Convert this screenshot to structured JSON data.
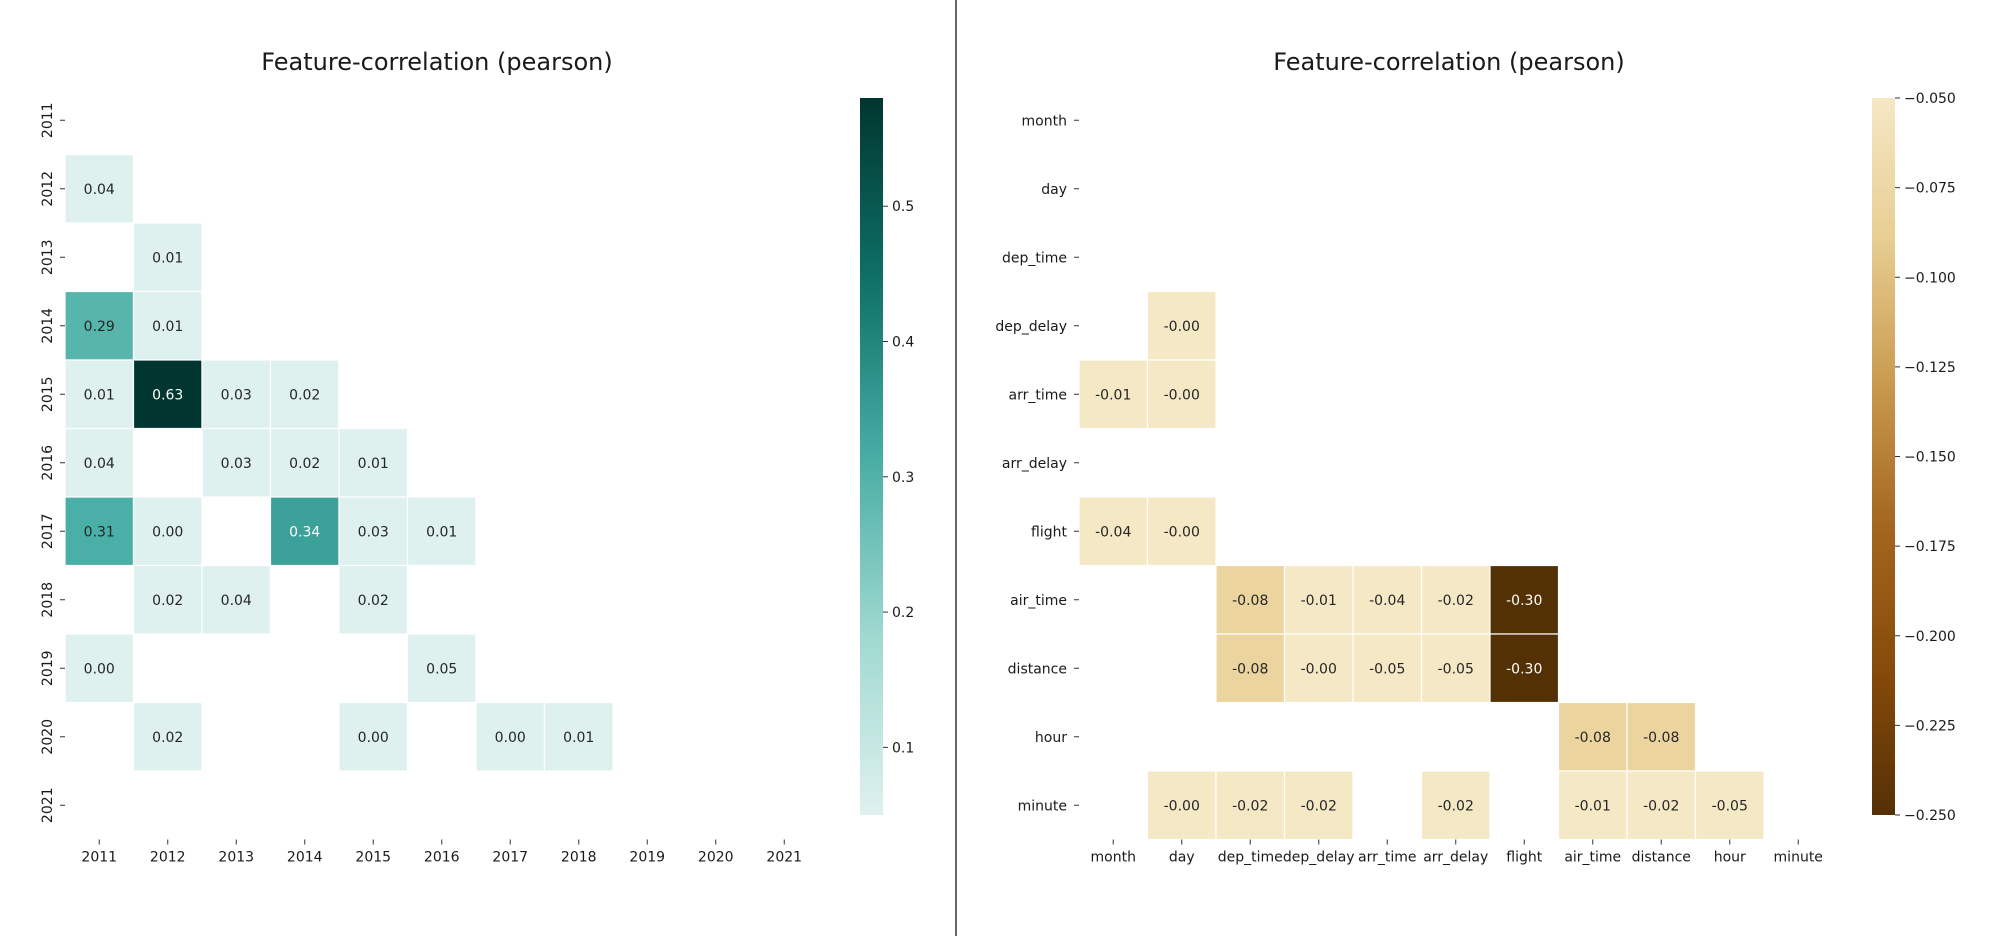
{
  "chart_data": [
    {
      "type": "heatmap",
      "title": "Feature-correlation (pearson)",
      "x_labels": [
        "2011",
        "2012",
        "2013",
        "2014",
        "2015",
        "2016",
        "2017",
        "2018",
        "2019",
        "2020",
        "2021"
      ],
      "y_labels": [
        "2011",
        "2012",
        "2013",
        "2014",
        "2015",
        "2016",
        "2017",
        "2018",
        "2019",
        "2020",
        "2021"
      ],
      "cells": [
        {
          "row": "2012",
          "col": "2011",
          "value": 0.04,
          "label": "0.04"
        },
        {
          "row": "2013",
          "col": "2012",
          "value": 0.01,
          "label": "0.01"
        },
        {
          "row": "2014",
          "col": "2011",
          "value": 0.29,
          "label": "0.29"
        },
        {
          "row": "2014",
          "col": "2012",
          "value": 0.01,
          "label": "0.01"
        },
        {
          "row": "2015",
          "col": "2011",
          "value": 0.01,
          "label": "0.01"
        },
        {
          "row": "2015",
          "col": "2012",
          "value": 0.63,
          "label": "0.63"
        },
        {
          "row": "2015",
          "col": "2013",
          "value": 0.03,
          "label": "0.03"
        },
        {
          "row": "2015",
          "col": "2014",
          "value": 0.02,
          "label": "0.02"
        },
        {
          "row": "2016",
          "col": "2011",
          "value": 0.04,
          "label": "0.04"
        },
        {
          "row": "2016",
          "col": "2013",
          "value": 0.03,
          "label": "0.03"
        },
        {
          "row": "2016",
          "col": "2014",
          "value": 0.02,
          "label": "0.02"
        },
        {
          "row": "2016",
          "col": "2015",
          "value": 0.01,
          "label": "0.01"
        },
        {
          "row": "2017",
          "col": "2011",
          "value": 0.31,
          "label": "0.31"
        },
        {
          "row": "2017",
          "col": "2012",
          "value": 0.0,
          "label": "0.00"
        },
        {
          "row": "2017",
          "col": "2014",
          "value": 0.34,
          "label": "0.34"
        },
        {
          "row": "2017",
          "col": "2015",
          "value": 0.03,
          "label": "0.03"
        },
        {
          "row": "2017",
          "col": "2016",
          "value": 0.01,
          "label": "0.01"
        },
        {
          "row": "2018",
          "col": "2012",
          "value": 0.02,
          "label": "0.02"
        },
        {
          "row": "2018",
          "col": "2013",
          "value": 0.04,
          "label": "0.04"
        },
        {
          "row": "2018",
          "col": "2015",
          "value": 0.02,
          "label": "0.02"
        },
        {
          "row": "2019",
          "col": "2011",
          "value": 0.0,
          "label": "0.00"
        },
        {
          "row": "2019",
          "col": "2016",
          "value": 0.05,
          "label": "0.05"
        },
        {
          "row": "2020",
          "col": "2012",
          "value": 0.02,
          "label": "0.02"
        },
        {
          "row": "2020",
          "col": "2015",
          "value": 0.0,
          "label": "0.00"
        },
        {
          "row": "2020",
          "col": "2017",
          "value": 0.0,
          "label": "0.00"
        },
        {
          "row": "2020",
          "col": "2018",
          "value": 0.01,
          "label": "0.01"
        }
      ],
      "colorbar": {
        "range": [
          0.05,
          0.58
        ],
        "ticks": [
          0.1,
          0.2,
          0.3,
          0.4,
          0.5
        ],
        "tick_labels": [
          "0.1",
          "0.2",
          "0.3",
          "0.4",
          "0.5"
        ],
        "colors": [
          "#dff1ef",
          "#9fd9d0",
          "#47ada4",
          "#0e7067",
          "#00362f"
        ]
      }
    },
    {
      "type": "heatmap",
      "title": "Feature-correlation (pearson)",
      "x_labels": [
        "month",
        "day",
        "dep_time",
        "dep_delay",
        "arr_time",
        "arr_delay",
        "flight",
        "air_time",
        "distance",
        "hour",
        "minute"
      ],
      "y_labels": [
        "month",
        "day",
        "dep_time",
        "dep_delay",
        "arr_time",
        "arr_delay",
        "flight",
        "air_time",
        "distance",
        "hour",
        "minute"
      ],
      "cells": [
        {
          "row": "dep_delay",
          "col": "day",
          "value": -0.0,
          "label": "-0.00"
        },
        {
          "row": "arr_time",
          "col": "month",
          "value": -0.01,
          "label": "-0.01"
        },
        {
          "row": "arr_time",
          "col": "day",
          "value": -0.0,
          "label": "-0.00"
        },
        {
          "row": "flight",
          "col": "month",
          "value": -0.04,
          "label": "-0.04"
        },
        {
          "row": "flight",
          "col": "day",
          "value": -0.0,
          "label": "-0.00"
        },
        {
          "row": "air_time",
          "col": "dep_time",
          "value": -0.08,
          "label": "-0.08"
        },
        {
          "row": "air_time",
          "col": "dep_delay",
          "value": -0.01,
          "label": "-0.01"
        },
        {
          "row": "air_time",
          "col": "arr_time",
          "value": -0.04,
          "label": "-0.04"
        },
        {
          "row": "air_time",
          "col": "arr_delay",
          "value": -0.02,
          "label": "-0.02"
        },
        {
          "row": "air_time",
          "col": "flight",
          "value": -0.3,
          "label": "-0.30"
        },
        {
          "row": "distance",
          "col": "dep_time",
          "value": -0.08,
          "label": "-0.08"
        },
        {
          "row": "distance",
          "col": "dep_delay",
          "value": -0.0,
          "label": "-0.00"
        },
        {
          "row": "distance",
          "col": "arr_time",
          "value": -0.05,
          "label": "-0.05"
        },
        {
          "row": "distance",
          "col": "arr_delay",
          "value": -0.05,
          "label": "-0.05"
        },
        {
          "row": "distance",
          "col": "flight",
          "value": -0.3,
          "label": "-0.30"
        },
        {
          "row": "hour",
          "col": "air_time",
          "value": -0.08,
          "label": "-0.08"
        },
        {
          "row": "hour",
          "col": "distance",
          "value": -0.08,
          "label": "-0.08"
        },
        {
          "row": "minute",
          "col": "day",
          "value": -0.0,
          "label": "-0.00"
        },
        {
          "row": "minute",
          "col": "dep_time",
          "value": -0.02,
          "label": "-0.02"
        },
        {
          "row": "minute",
          "col": "dep_delay",
          "value": -0.02,
          "label": "-0.02"
        },
        {
          "row": "minute",
          "col": "arr_delay",
          "value": -0.02,
          "label": "-0.02"
        },
        {
          "row": "minute",
          "col": "air_time",
          "value": -0.01,
          "label": "-0.01"
        },
        {
          "row": "minute",
          "col": "distance",
          "value": -0.02,
          "label": "-0.02"
        },
        {
          "row": "minute",
          "col": "hour",
          "value": -0.05,
          "label": "-0.05"
        }
      ],
      "colorbar": {
        "range": [
          -0.25,
          -0.05
        ],
        "ticks": [
          -0.05,
          -0.075,
          -0.1,
          -0.125,
          -0.15,
          -0.175,
          -0.2,
          -0.225,
          -0.25
        ],
        "tick_labels": [
          "−0.050",
          "−0.075",
          "−0.100",
          "−0.125",
          "−0.150",
          "−0.175",
          "−0.200",
          "−0.225",
          "−0.250"
        ],
        "colors": [
          "#f5e8c5",
          "#e7cd91",
          "#c89a4e",
          "#a3661e",
          "#864a0a",
          "#543005"
        ]
      }
    }
  ]
}
